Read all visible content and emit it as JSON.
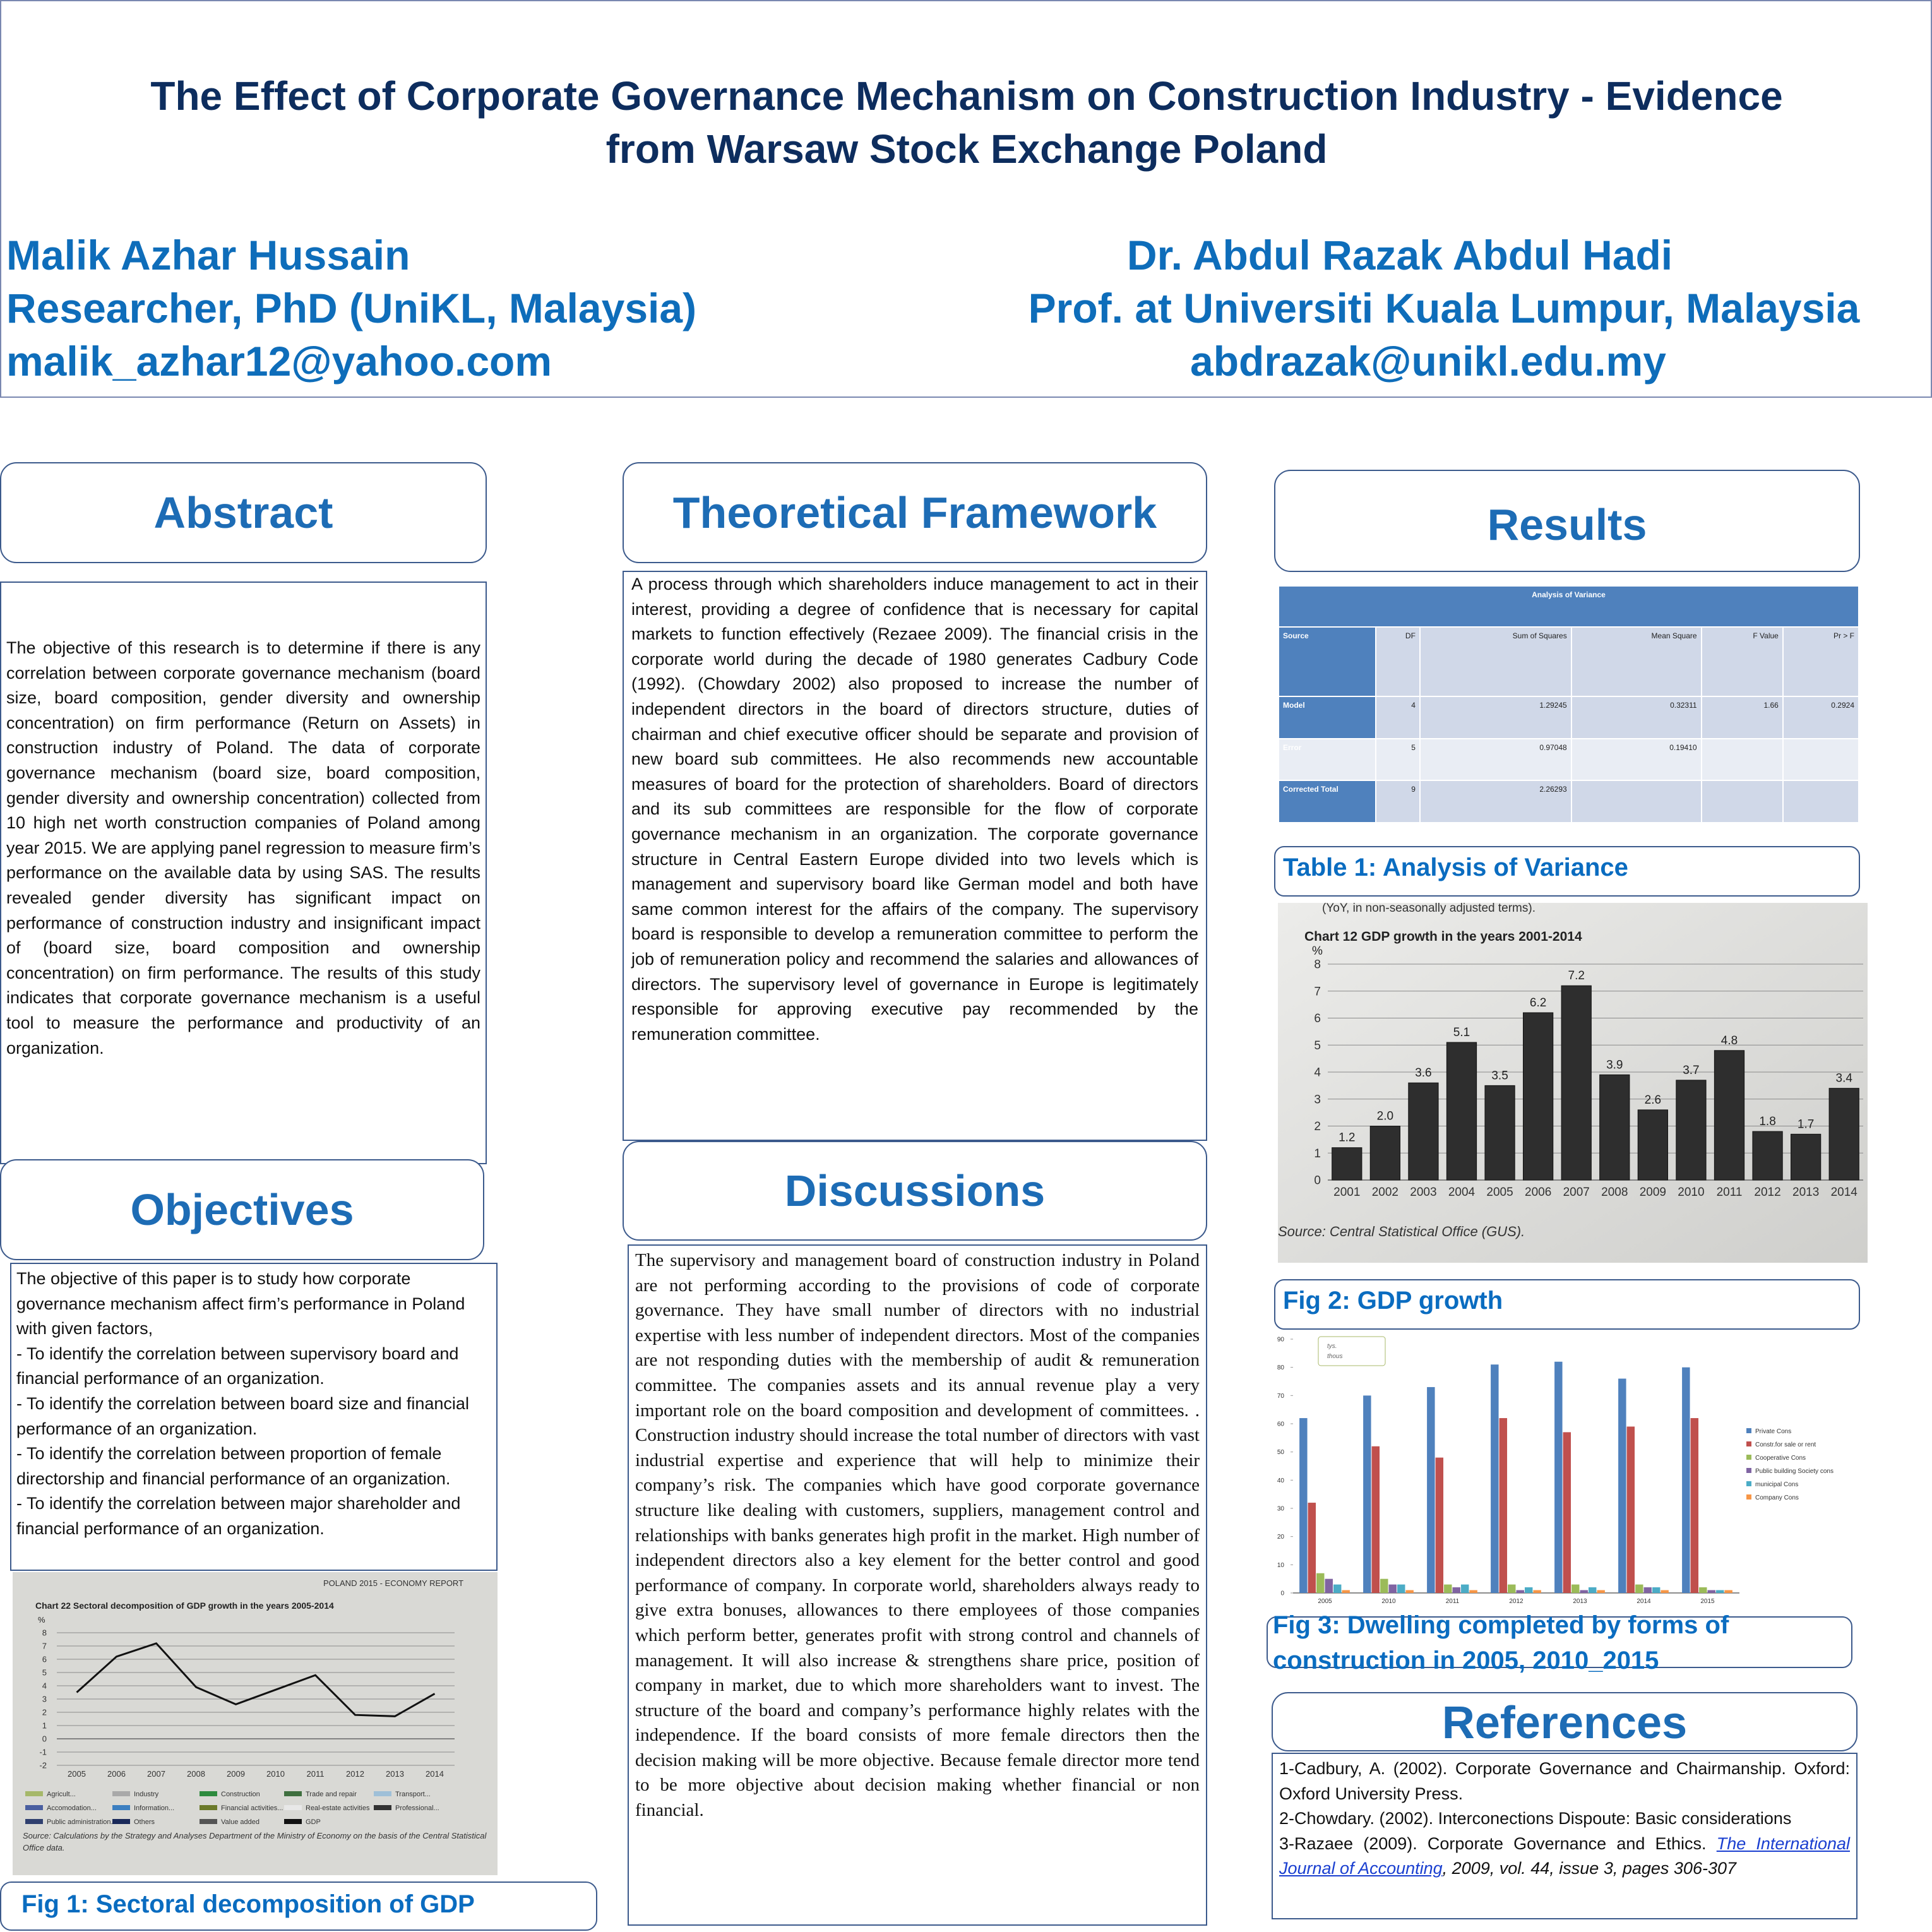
{
  "header": {
    "title": [
      "The Effect of Corporate Governance Mechanism on Construction Industry  - Evidence",
      "from Warsaw Stock Exchange Poland"
    ],
    "authors": [
      {
        "name": "Malik Azhar Hussain",
        "affiliation": "Researcher, PhD  (UniKL, Malaysia)",
        "email": "malik_azhar12@yahoo.com"
      },
      {
        "name": "Dr. Abdul Razak Abdul Hadi",
        "affiliation": "Prof.  at Universiti Kuala Lumpur, Malaysia",
        "email": "abdrazak@unikl.edu.my"
      }
    ]
  },
  "abstract": {
    "heading": "Abstract",
    "text": "The objective of this research is to determine if there is any correlation between corporate governance mechanism (board size, board composition, gender diversity and ownership concentration) on firm performance (Return on Assets) in construction industry of Poland. The data of corporate governance mechanism (board size, board composition, gender diversity and ownership concentration) collected from 10 high net worth construction companies of Poland among year 2015. We are applying panel regression to measure firm’s performance on the available data by using SAS. The results revealed gender diversity has significant impact on performance of construction industry and insignificant impact of (board size, board composition and ownership concentration) on firm performance. The results of this study indicates that corporate governance mechanism is a useful tool to measure the performance and productivity of an organization."
  },
  "objectives": {
    "heading": "Objectives",
    "intro": "The objective of this paper is to study how corporate governance mechanism affect firm’s performance in Poland with given factors,",
    "items": [
      "- To identify the correlation between supervisory board and financial performance of an organization.",
      "- To identify the correlation between board size and financial performance of an organization.",
      "- To identify the correlation between proportion of female directorship and financial performance of an organization.",
      "- To identify the correlation between major shareholder and financial performance of an organization."
    ]
  },
  "theoretical_framework": {
    "heading": "Theoretical Framework",
    "text": "A process through which shareholders induce management to act in their interest, providing a degree of confidence that is necessary for capital markets to function effectively (Rezaee 2009). The financial crisis in the corporate world during the decade of 1980 generates Cadbury Code (1992). (Chowdary 2002) also proposed to increase the number of independent directors in the board of directors structure, duties of chairman and chief executive officer should be separate and provision of new board sub committees. He also recommends new accountable measures of board for the protection of shareholders. Board of directors and its sub committees are responsible for the flow of corporate governance mechanism in an organization. The corporate governance structure in Central Eastern Europe divided into two levels which is management and supervisory board like German model and both have same common interest for the affairs of the company. The supervisory board is responsible to develop a remuneration committee to perform the job of remuneration policy and recommend the salaries and allowances of directors. The supervisory level of governance  in Europe is legitimately responsible for approving executive pay recommended by the remuneration committee."
  },
  "discussions": {
    "heading": "Discussions",
    "text": "The supervisory and management board of construction industry in Poland are not performing according to the provisions of code of corporate governance. They have small number of directors with no industrial expertise with less number of independent directors. Most of the companies are not responding duties with the membership of audit & remuneration committee. The companies assets and its annual revenue play a very important role on the board composition and development of committees. . Construction industry should increase the total number of directors with vast industrial expertise and experience that will help to minimize their company’s risk. The companies which have good corporate governance structure like dealing with customers, suppliers, management control and relationships with banks generates high profit in the market. High number of independent directors also a key element for the better control and good performance of company. In corporate world, shareholders always ready to give extra bonuses, allowances to there employees of those companies which perform better, generates profit  with strong control and channels of management. It will also increase & strengthens share price, position of company  in market, due to which more shareholders  want to invest. The structure of the board and company’s performance highly relates with the independence. If the board consists of more female directors then the decision making will be more objective. Because female director more tend to be more objective about decision making whether financial or non financial."
  },
  "results": {
    "heading": "Results"
  },
  "table": {
    "title": "Analysis of Variance",
    "columns": [
      "Source",
      "DF",
      "Sum of Squares",
      "Mean Square",
      "F Value",
      "Pr > F"
    ],
    "rows": [
      [
        "Model",
        "4",
        "1.29245",
        "0.32311",
        "1.66",
        "0.2924"
      ],
      [
        "Error",
        "5",
        "0.97048",
        "0.19410",
        null,
        null
      ],
      [
        "Corrected Total",
        "9",
        "2.26293",
        null,
        null,
        null
      ]
    ],
    "caption": "Table 1: Analysis of Variance"
  },
  "figures": [
    {
      "caption": "Fig 1: Sectoral decomposition of GDP"
    },
    {
      "caption": "Fig 2: GDP growth"
    },
    {
      "caption": "Fig 3: Dwelling completed by forms of construction in 2005, 2010_2015"
    }
  ],
  "references": {
    "heading": "References",
    "items": [
      "1-Cadbury, A. (2002). Corporate Governance and Chairmanship. Oxford: Oxford University Press.",
      "2-Chowdary. (2002). Interconections Dispoute: Basic considerations",
      {
        "before": "3-Razaee (2009). Corporate Governance and Ethics.",
        "link": "The International Journal of Accounting",
        "after": ", 2009, vol. 44, issue 3, pages 306-307"
      }
    ]
  },
  "chart_data": [
    {
      "type": "line",
      "header": "POLAND 2015 - ECONOMY REPORT",
      "title": "Chart 22 Sectoral decomposition of GDP growth in the years 2005-2014",
      "y_label": "%",
      "categories": [
        "2005",
        "2006",
        "2007",
        "2008",
        "2009",
        "2010",
        "2011",
        "2012",
        "2013",
        "2014"
      ],
      "series": [
        {
          "name": "GDP",
          "color": "#111111",
          "values": [
            3.5,
            6.2,
            7.2,
            3.9,
            2.6,
            3.7,
            4.8,
            1.8,
            1.7,
            3.4
          ]
        }
      ],
      "ylim": [
        -2,
        8
      ],
      "yticks": [
        -2,
        -1,
        0,
        1,
        2,
        3,
        4,
        5,
        6,
        7,
        8
      ],
      "grid": true,
      "legend_entries": [
        {
          "name": "Agricult...",
          "color": "#a6b86a"
        },
        {
          "name": "Industry",
          "color": "#a9a9a9"
        },
        {
          "name": "Construction",
          "color": "#2e8b3e"
        },
        {
          "name": "Trade and repair",
          "color": "#3f6f3f"
        },
        {
          "name": "Transport...",
          "color": "#9fc0d8"
        },
        {
          "name": "Accomodation...",
          "color": "#4a5fa0"
        },
        {
          "name": "Information...",
          "color": "#3c7fc0"
        },
        {
          "name": "Financial activities...",
          "color": "#6b7a2a"
        },
        {
          "name": "Real-estate activities",
          "color": "#e8e8e8"
        },
        {
          "name": "Professional...",
          "color": "#333333"
        },
        {
          "name": "Public administration...",
          "color": "#2f3f6f"
        },
        {
          "name": "Others",
          "color": "#1a2a5a"
        },
        {
          "name": "Value added",
          "color": "#555555"
        }
      ],
      "source": "Source: Calculations by the Strategy and Analyses Department of the Ministry of Economy on the basis of the Central Statistical Office data."
    },
    {
      "type": "bar",
      "header": "(YoY, in non-seasonally adjusted terms).",
      "title": "Chart 12 GDP growth in the years 2001-2014",
      "y_label": "%",
      "categories": [
        "2001",
        "2002",
        "2003",
        "2004",
        "2005",
        "2006",
        "2007",
        "2008",
        "2009",
        "2010",
        "2011",
        "2012",
        "2013",
        "2014"
      ],
      "values": [
        1.2,
        2.0,
        3.6,
        5.1,
        3.5,
        6.2,
        7.2,
        3.9,
        2.6,
        3.7,
        4.8,
        1.8,
        1.7,
        3.4
      ],
      "value_labels": [
        "1.2",
        "2.0",
        "3.6",
        "5.1",
        "3.5",
        "6.2",
        "7.2",
        "3.9",
        "2.6",
        "3.7",
        "4.8",
        "1.8",
        "1.7",
        "3.4"
      ],
      "color": "#2e2e2e",
      "ylim": [
        0,
        8
      ],
      "yticks": [
        0,
        1,
        2,
        3,
        4,
        5,
        6,
        7,
        8
      ],
      "grid": true,
      "source": "Source: Central Statistical Office (GUS)."
    },
    {
      "type": "bar",
      "unit_label": [
        "tys.",
        "thous"
      ],
      "categories": [
        "2005",
        "2010",
        "2011",
        "2012",
        "2013",
        "2014",
        "2015"
      ],
      "series": [
        {
          "name": "Private Cons",
          "color": "#4f81bd",
          "values": [
            62,
            70,
            73,
            81,
            82,
            76,
            80
          ]
        },
        {
          "name": "Constr.for sale or rent",
          "color": "#c0504d",
          "values": [
            32,
            52,
            48,
            62,
            57,
            59,
            62
          ]
        },
        {
          "name": "Cooperative Cons",
          "color": "#9bbb59",
          "values": [
            7,
            5,
            3,
            3,
            3,
            3,
            2
          ]
        },
        {
          "name": "Public building Society cons",
          "color": "#8064a2",
          "values": [
            5,
            3,
            2,
            1,
            1,
            2,
            1
          ]
        },
        {
          "name": "municipal Cons",
          "color": "#4bacc6",
          "values": [
            3,
            3,
            3,
            2,
            2,
            2,
            1
          ]
        },
        {
          "name": "Company Cons",
          "color": "#f79646",
          "values": [
            1,
            1,
            1,
            1,
            1,
            1,
            1
          ]
        }
      ],
      "ylim": [
        0,
        90
      ],
      "yticks": [
        0,
        10,
        20,
        30,
        40,
        50,
        60,
        70,
        80,
        90
      ],
      "grid": false,
      "legend": "right"
    }
  ]
}
